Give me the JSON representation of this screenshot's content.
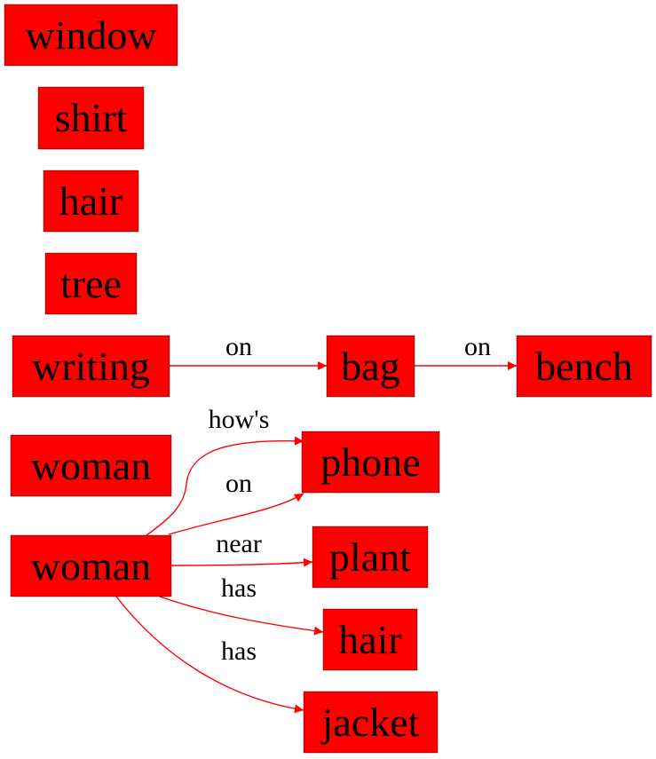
{
  "diagram": {
    "node_color": "#ff0000",
    "edge_color": "#ff0000",
    "nodes": {
      "window": "window",
      "shirt": "shirt",
      "hair_1": "hair",
      "tree": "tree",
      "writing": "writing",
      "bag": "bag",
      "bench": "bench",
      "woman_1": "woman",
      "woman_2": "woman",
      "phone": "phone",
      "plant": "plant",
      "hair_2": "hair",
      "jacket": "jacket"
    },
    "edges": {
      "writing_bag": "on",
      "bag_bench": "on",
      "woman_phone_hows": "how's",
      "woman_phone_on": "on",
      "woman_plant": "near",
      "woman_hair": "has",
      "woman_jacket": "has"
    }
  }
}
